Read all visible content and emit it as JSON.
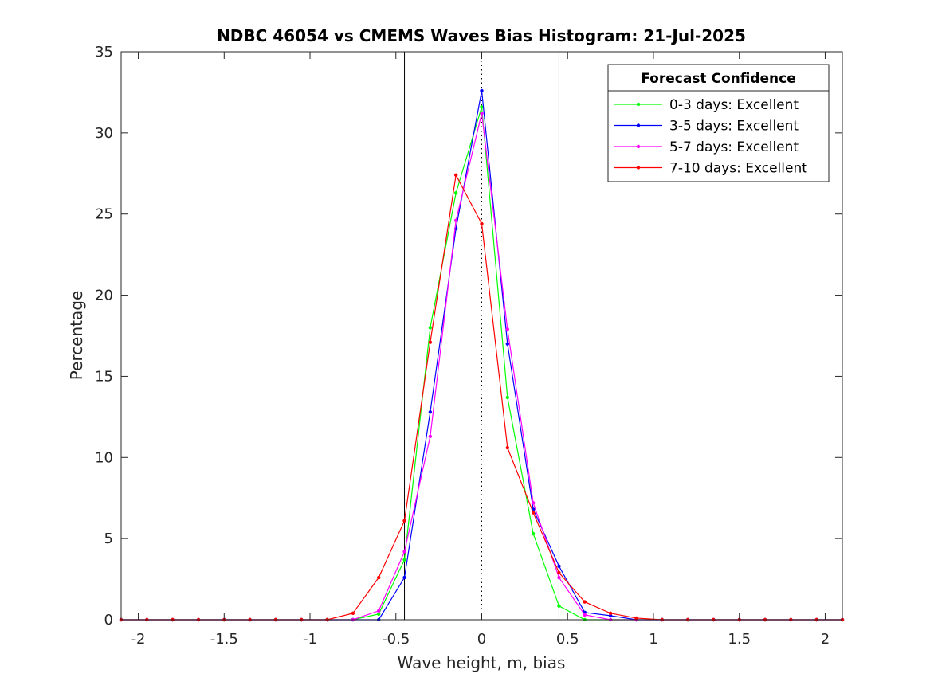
{
  "chart_data": {
    "type": "line",
    "title": "NDBC 46054 vs CMEMS Waves Bias Histogram: 21-Jul-2025",
    "xlabel": "Wave height, m, bias",
    "ylabel": "Percentage",
    "xlim": [
      -2.1,
      2.1
    ],
    "ylim": [
      0,
      35
    ],
    "xticks": [
      -2,
      -1.5,
      -1,
      -0.5,
      0,
      0.5,
      1,
      1.5,
      2
    ],
    "xtick_labels": [
      "-2",
      "-1.5",
      "-1",
      "-0.5",
      "0",
      "0.5",
      "1",
      "1.5",
      "2"
    ],
    "yticks": [
      0,
      5,
      10,
      15,
      20,
      25,
      30,
      35
    ],
    "ytick_labels": [
      "0",
      "5",
      "10",
      "15",
      "20",
      "25",
      "30",
      "35"
    ],
    "vertical_lines": [
      {
        "x": -0.45,
        "style": "solid",
        "color": "#000000"
      },
      {
        "x": 0,
        "style": "dotted",
        "color": "#000000"
      },
      {
        "x": 0.45,
        "style": "solid",
        "color": "#000000"
      }
    ],
    "x": [
      -2.1,
      -1.95,
      -1.8,
      -1.65,
      -1.5,
      -1.35,
      -1.2,
      -1.05,
      -0.9,
      -0.75,
      -0.6,
      -0.45,
      -0.3,
      -0.15,
      0,
      0.15,
      0.3,
      0.45,
      0.6,
      0.75,
      0.9,
      1.05,
      1.2,
      1.35,
      1.5,
      1.65,
      1.8,
      1.95,
      2.1
    ],
    "series": [
      {
        "name": "0-3 days: Excellent",
        "color": "#00ff00",
        "values": [
          0,
          0,
          0,
          0,
          0,
          0,
          0,
          0,
          0,
          0,
          0.35,
          3.7,
          18.0,
          26.3,
          31.6,
          13.7,
          5.3,
          0.85,
          0,
          0,
          0,
          0,
          0,
          0,
          0,
          0,
          0,
          0,
          0
        ]
      },
      {
        "name": "3-5 days: Excellent",
        "color": "#0000ff",
        "values": [
          0,
          0,
          0,
          0,
          0,
          0,
          0,
          0,
          0,
          0,
          0,
          2.6,
          12.8,
          24.1,
          32.6,
          17.0,
          6.8,
          3.3,
          0.45,
          0.25,
          0,
          0,
          0,
          0,
          0,
          0,
          0,
          0,
          0
        ]
      },
      {
        "name": "5-7 days: Excellent",
        "color": "#ff00ff",
        "values": [
          0,
          0,
          0,
          0,
          0,
          0,
          0,
          0,
          0,
          0,
          0.55,
          4.2,
          11.3,
          24.6,
          31.2,
          17.9,
          7.2,
          2.6,
          0.3,
          0,
          0,
          0,
          0,
          0,
          0,
          0,
          0,
          0,
          0
        ]
      },
      {
        "name": "7-10 days: Excellent",
        "color": "#ff0000",
        "values": [
          0,
          0,
          0,
          0,
          0,
          0,
          0,
          0,
          0,
          0.4,
          2.6,
          6.1,
          17.1,
          27.4,
          24.4,
          10.6,
          6.6,
          2.9,
          1.1,
          0.4,
          0.1,
          0,
          0,
          0,
          0,
          0,
          0,
          0,
          0
        ]
      }
    ],
    "legend": {
      "title": "Forecast Confidence",
      "position": "top-right"
    },
    "grid": false
  }
}
